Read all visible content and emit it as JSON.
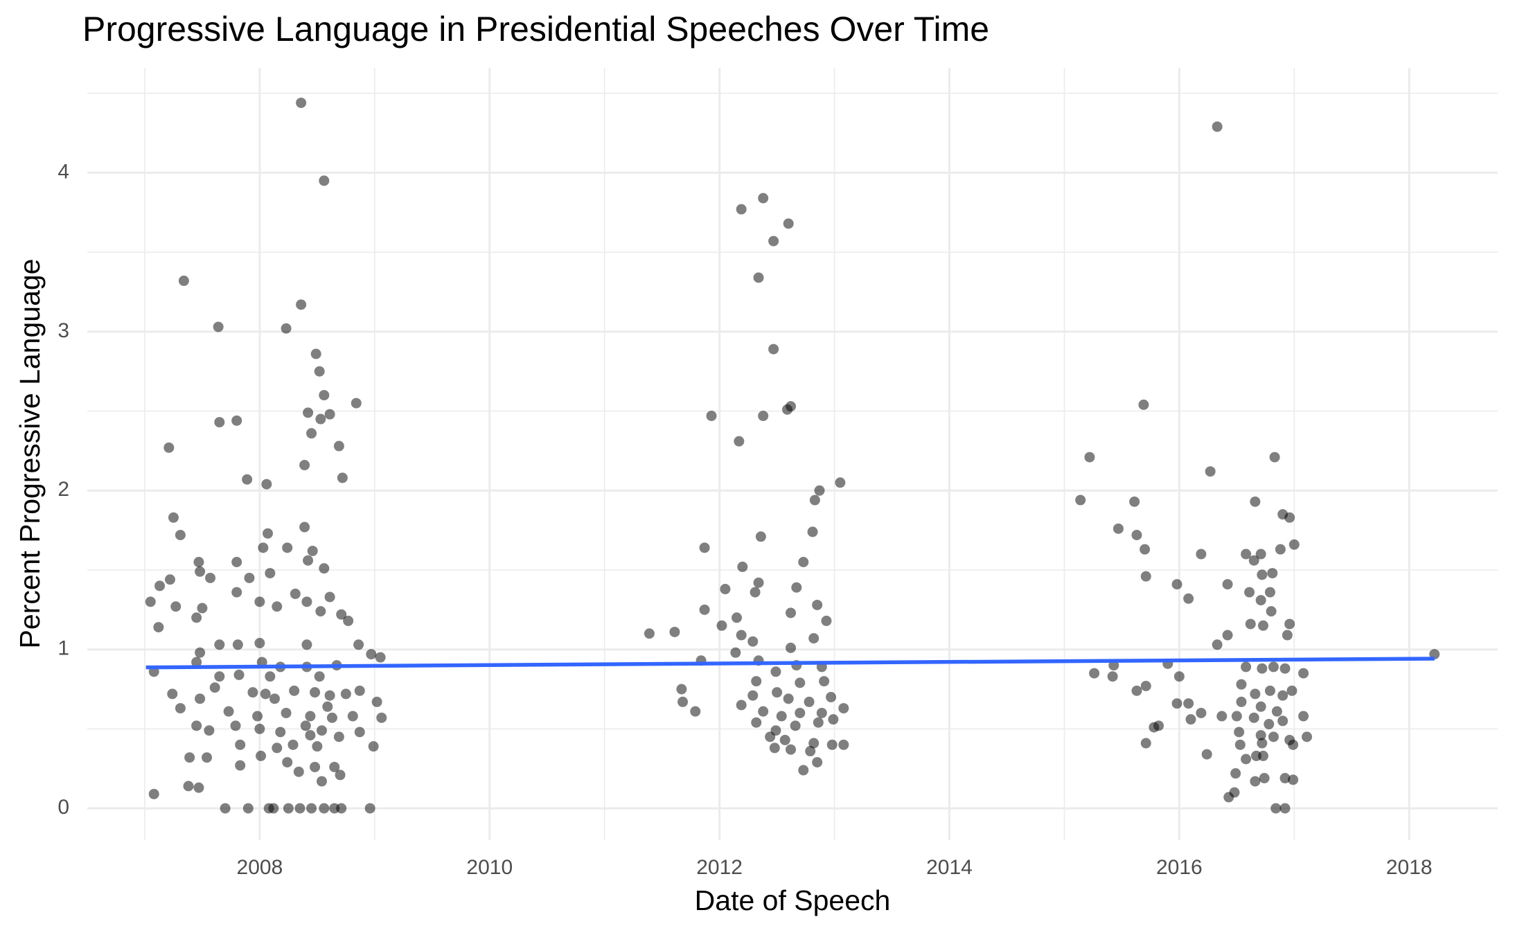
{
  "chart_data": {
    "type": "scatter",
    "title": "Progressive Language in Presidential Speeches Over Time",
    "x_label": "Date of Speech",
    "y_label": "Percent Progressive Language",
    "xlim": [
      2006.5,
      2018.77
    ],
    "ylim": [
      -0.2,
      4.66
    ],
    "xticks": [
      2008,
      2010,
      2012,
      2014,
      2016,
      2018
    ],
    "yticks": [
      0,
      1,
      2,
      3,
      4
    ],
    "xminor_ticks": [
      2007,
      2009,
      2011,
      2013,
      2015,
      2017
    ],
    "yminor_ticks": [
      0.5,
      1.5,
      2.5,
      3.5,
      4.5
    ],
    "grid": true,
    "color": "#000000",
    "opacity": 0.5,
    "x": [
      2008.36,
      2008.56,
      2007.34,
      2007.64,
      2008.36,
      2008.23,
      2008.49,
      2008.52,
      2008.56,
      2008.84,
      2008.42,
      2008.61,
      2008.53,
      2008.45,
      2007.21,
      2008.69,
      2007.65,
      2007.8,
      2008.39,
      2007.89,
      2008.06,
      2008.72,
      2007.25,
      2008.39,
      2007.31,
      2008.07,
      2008.03,
      2008.24,
      2008.46,
      2007.47,
      2007.8,
      2008.42,
      2008.56,
      2007.48,
      2007.57,
      2007.91,
      2008.09,
      2007.22,
      2007.13,
      2007.8,
      2008.31,
      2007.05,
      2007.27,
      2007.5,
      2008.0,
      2008.15,
      2008.61,
      2008.41,
      2008.53,
      2007.12,
      2007.45,
      2008.71,
      2008.77,
      2007.65,
      2007.81,
      2008.0,
      2008.41,
      2008.86,
      2007.48,
      2007.08,
      2007.45,
      2007.65,
      2007.82,
      2008.02,
      2008.18,
      2008.41,
      2008.67,
      2008.97,
      2009.05,
      2007.24,
      2007.48,
      2007.61,
      2007.94,
      2008.13,
      2008.3,
      2008.48,
      2008.61,
      2008.75,
      2008.87,
      2009.02,
      2007.31,
      2007.73,
      2007.98,
      2008.23,
      2008.44,
      2008.63,
      2008.81,
      2009.06,
      2007.45,
      2007.79,
      2008.0,
      2008.18,
      2008.44,
      2008.54,
      2008.69,
      2008.87,
      2007.56,
      2007.39,
      2007.83,
      2008.15,
      2008.29,
      2008.5,
      2008.99,
      2007.54,
      2008.01,
      2008.24,
      2008.48,
      2008.65,
      2007.83,
      2008.34,
      2008.54,
      2008.7,
      2007.38,
      2007.47,
      2007.08,
      2007.7,
      2007.9,
      2008.08,
      2008.12,
      2008.25,
      2008.35,
      2008.45,
      2008.56,
      2008.65,
      2008.71,
      2008.96,
      2008.05,
      2008.52,
      2008.59,
      2008.4,
      2008.09,
      2011.39,
      2011.61,
      2011.87,
      2011.67,
      2011.68,
      2011.79,
      2011.84,
      2011.93,
      2012.19,
      2012.38,
      2012.34,
      2012.47,
      2012.6,
      2012.17,
      2012.38,
      2012.47,
      2012.62,
      2012.59,
      2012.87,
      2013.05,
      2012.83,
      2012.36,
      2012.81,
      2012.2,
      2012.73,
      2012.05,
      2012.34,
      2012.31,
      2012.67,
      2012.15,
      2012.02,
      2011.87,
      2012.62,
      2012.85,
      2012.93,
      2012.19,
      2012.29,
      2012.62,
      2012.82,
      2012.14,
      2012.34,
      2012.49,
      2012.67,
      2012.89,
      2012.32,
      2012.5,
      2012.7,
      2012.91,
      2012.29,
      2012.6,
      2012.78,
      2012.97,
      2012.38,
      2012.54,
      2012.7,
      2012.89,
      2013.08,
      2012.32,
      2012.49,
      2012.66,
      2012.86,
      2012.99,
      2012.44,
      2012.57,
      2012.82,
      2012.98,
      2013.08,
      2012.48,
      2012.62,
      2012.79,
      2012.85,
      2012.73,
      2012.19,
      2015.14,
      2015.22,
      2015.69,
      2015.61,
      2015.47,
      2015.63,
      2015.7,
      2015.71,
      2015.98,
      2016.08,
      2016.19,
      2016.27,
      2016.33,
      2016.42,
      2016.42,
      2016.33,
      2015.26,
      2015.42,
      2015.43,
      2015.9,
      2016.0,
      2015.63,
      2015.71,
      2015.98,
      2016.08,
      2016.19,
      2016.37,
      2015.78,
      2015.82,
      2016.1,
      2015.71,
      2016.24,
      2016.58,
      2016.66,
      2016.83,
      2016.65,
      2016.71,
      2016.81,
      2016.72,
      2016.9,
      2016.96,
      2017.0,
      2016.88,
      2016.61,
      2016.71,
      2016.79,
      2016.8,
      2016.62,
      2016.73,
      2016.96,
      2016.94,
      2017.08,
      2016.58,
      2016.72,
      2016.82,
      2016.92,
      2016.54,
      2016.66,
      2016.79,
      2016.9,
      2016.98,
      2016.54,
      2016.71,
      2016.85,
      2017.08,
      2016.5,
      2016.65,
      2016.78,
      2016.9,
      2016.52,
      2016.71,
      2016.82,
      2016.96,
      2017.11,
      2016.53,
      2016.72,
      2016.99,
      2016.58,
      2016.67,
      2016.73,
      2016.49,
      2016.74,
      2016.92,
      2016.99,
      2016.66,
      2016.48,
      2016.43,
      2016.84,
      2016.92,
      2018.22
    ],
    "values": [
      4.44,
      3.95,
      3.32,
      3.03,
      3.17,
      3.02,
      2.86,
      2.75,
      2.6,
      2.55,
      2.49,
      2.48,
      2.45,
      2.36,
      2.27,
      2.28,
      2.43,
      2.44,
      2.16,
      2.07,
      2.04,
      2.08,
      1.83,
      1.77,
      1.72,
      1.73,
      1.64,
      1.64,
      1.62,
      1.55,
      1.55,
      1.56,
      1.51,
      1.49,
      1.45,
      1.45,
      1.48,
      1.44,
      1.4,
      1.36,
      1.35,
      1.3,
      1.27,
      1.26,
      1.3,
      1.27,
      1.33,
      1.3,
      1.24,
      1.14,
      1.2,
      1.22,
      1.18,
      1.03,
      1.03,
      1.04,
      1.03,
      1.03,
      0.98,
      0.86,
      0.92,
      0.83,
      0.84,
      0.92,
      0.89,
      0.89,
      0.9,
      0.97,
      0.95,
      0.72,
      0.69,
      0.76,
      0.73,
      0.69,
      0.74,
      0.73,
      0.71,
      0.72,
      0.74,
      0.67,
      0.63,
      0.61,
      0.58,
      0.6,
      0.58,
      0.57,
      0.58,
      0.57,
      0.52,
      0.52,
      0.5,
      0.48,
      0.46,
      0.49,
      0.45,
      0.48,
      0.49,
      0.32,
      0.4,
      0.38,
      0.4,
      0.39,
      0.39,
      0.32,
      0.33,
      0.29,
      0.26,
      0.26,
      0.27,
      0.23,
      0.17,
      0.21,
      0.14,
      0.13,
      0.09,
      0,
      0,
      0,
      0,
      0,
      0,
      0,
      0,
      0,
      0,
      0,
      0.72,
      0.83,
      0.64,
      0.52,
      0.83,
      1.1,
      1.11,
      1.64,
      0.75,
      0.67,
      0.61,
      0.93,
      2.47,
      3.77,
      3.84,
      3.34,
      3.57,
      3.68,
      2.31,
      2.47,
      2.89,
      2.53,
      2.51,
      2.0,
      2.05,
      1.94,
      1.71,
      1.74,
      1.52,
      1.55,
      1.38,
      1.42,
      1.36,
      1.39,
      1.2,
      1.15,
      1.25,
      1.23,
      1.28,
      1.18,
      1.09,
      1.05,
      1.01,
      1.07,
      0.98,
      0.93,
      0.86,
      0.9,
      0.89,
      0.8,
      0.73,
      0.79,
      0.8,
      0.71,
      0.69,
      0.67,
      0.7,
      0.61,
      0.58,
      0.6,
      0.6,
      0.63,
      0.54,
      0.49,
      0.52,
      0.54,
      0.56,
      0.45,
      0.43,
      0.41,
      0.4,
      0.4,
      0.38,
      0.37,
      0.36,
      0.29,
      0.24,
      0.65,
      1.94,
      2.21,
      2.54,
      1.93,
      1.76,
      1.72,
      1.63,
      1.46,
      1.41,
      1.32,
      1.6,
      2.12,
      4.29,
      1.41,
      1.09,
      1.03,
      0.85,
      0.83,
      0.9,
      0.91,
      0.83,
      0.74,
      0.77,
      0.66,
      0.66,
      0.6,
      0.58,
      0.51,
      0.52,
      0.56,
      0.41,
      0.34,
      1.6,
      1.93,
      2.21,
      1.56,
      1.6,
      1.48,
      1.47,
      1.85,
      1.83,
      1.66,
      1.63,
      1.36,
      1.31,
      1.36,
      1.24,
      1.16,
      1.15,
      1.16,
      1.09,
      0.85,
      0.89,
      0.88,
      0.89,
      0.88,
      0.78,
      0.72,
      0.74,
      0.71,
      0.74,
      0.67,
      0.64,
      0.61,
      0.58,
      0.58,
      0.57,
      0.53,
      0.55,
      0.48,
      0.46,
      0.45,
      0.43,
      0.45,
      0.4,
      0.41,
      0.4,
      0.31,
      0.33,
      0.33,
      0.22,
      0.19,
      0.19,
      0.18,
      0.17,
      0.1,
      0.07,
      0,
      0,
      0.97
    ],
    "trend": {
      "color": "#3366ff",
      "x": [
        2007.01,
        2018.22
      ],
      "values": [
        0.887,
        0.942
      ]
    }
  }
}
